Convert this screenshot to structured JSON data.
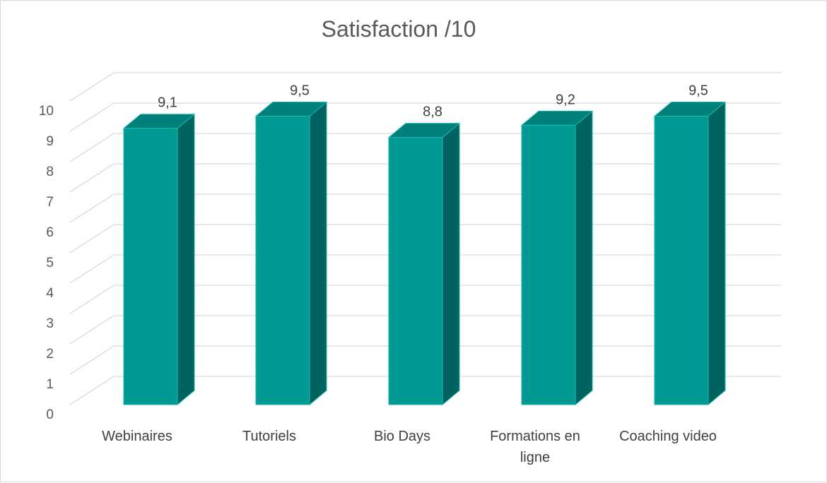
{
  "chart_data": {
    "type": "bar",
    "title": "Satisfaction /10",
    "categories": [
      "Webinaires",
      "Tutoriels",
      "Bio Days",
      "Formations en ligne",
      "Coaching video"
    ],
    "category_lines": [
      [
        "Webinaires"
      ],
      [
        "Tutoriels"
      ],
      [
        "Bio Days"
      ],
      [
        "Formations en",
        "ligne"
      ],
      [
        "Coaching video"
      ]
    ],
    "values": [
      9.1,
      9.5,
      8.8,
      9.2,
      9.5
    ],
    "value_labels": [
      "9,1",
      "9,5",
      "8,8",
      "9,2",
      "9,5"
    ],
    "ylim": [
      0,
      10
    ],
    "y_ticks": [
      0,
      1,
      2,
      3,
      4,
      5,
      6,
      7,
      8,
      9,
      10
    ],
    "xlabel": "",
    "ylabel": "",
    "grid": true,
    "legend": "none",
    "colors": {
      "bar_front": "#009993",
      "bar_side": "#006360",
      "bar_top": "#00807a",
      "bar_edge": "#1ab8b0",
      "grid": "#d9d9d9",
      "text": "#595959"
    }
  }
}
